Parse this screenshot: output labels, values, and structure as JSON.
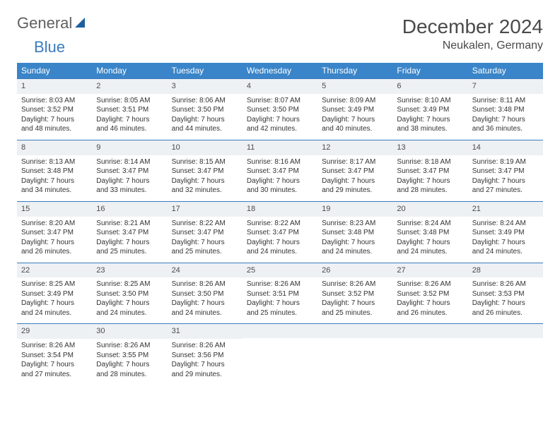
{
  "logo": {
    "text1": "General",
    "text2": "Blue"
  },
  "title": "December 2024",
  "location": "Neukalen, Germany",
  "colors": {
    "header_bg": "#3a85c9",
    "header_text": "#ffffff",
    "border": "#3a7cbf",
    "daynum_bg": "#eef1f3",
    "text": "#333333",
    "title_text": "#4a4a4a"
  },
  "day_names": [
    "Sunday",
    "Monday",
    "Tuesday",
    "Wednesday",
    "Thursday",
    "Friday",
    "Saturday"
  ],
  "weeks": [
    [
      {
        "n": "1",
        "sr": "Sunrise: 8:03 AM",
        "ss": "Sunset: 3:52 PM",
        "d1": "Daylight: 7 hours",
        "d2": "and 48 minutes."
      },
      {
        "n": "2",
        "sr": "Sunrise: 8:05 AM",
        "ss": "Sunset: 3:51 PM",
        "d1": "Daylight: 7 hours",
        "d2": "and 46 minutes."
      },
      {
        "n": "3",
        "sr": "Sunrise: 8:06 AM",
        "ss": "Sunset: 3:50 PM",
        "d1": "Daylight: 7 hours",
        "d2": "and 44 minutes."
      },
      {
        "n": "4",
        "sr": "Sunrise: 8:07 AM",
        "ss": "Sunset: 3:50 PM",
        "d1": "Daylight: 7 hours",
        "d2": "and 42 minutes."
      },
      {
        "n": "5",
        "sr": "Sunrise: 8:09 AM",
        "ss": "Sunset: 3:49 PM",
        "d1": "Daylight: 7 hours",
        "d2": "and 40 minutes."
      },
      {
        "n": "6",
        "sr": "Sunrise: 8:10 AM",
        "ss": "Sunset: 3:49 PM",
        "d1": "Daylight: 7 hours",
        "d2": "and 38 minutes."
      },
      {
        "n": "7",
        "sr": "Sunrise: 8:11 AM",
        "ss": "Sunset: 3:48 PM",
        "d1": "Daylight: 7 hours",
        "d2": "and 36 minutes."
      }
    ],
    [
      {
        "n": "8",
        "sr": "Sunrise: 8:13 AM",
        "ss": "Sunset: 3:48 PM",
        "d1": "Daylight: 7 hours",
        "d2": "and 34 minutes."
      },
      {
        "n": "9",
        "sr": "Sunrise: 8:14 AM",
        "ss": "Sunset: 3:47 PM",
        "d1": "Daylight: 7 hours",
        "d2": "and 33 minutes."
      },
      {
        "n": "10",
        "sr": "Sunrise: 8:15 AM",
        "ss": "Sunset: 3:47 PM",
        "d1": "Daylight: 7 hours",
        "d2": "and 32 minutes."
      },
      {
        "n": "11",
        "sr": "Sunrise: 8:16 AM",
        "ss": "Sunset: 3:47 PM",
        "d1": "Daylight: 7 hours",
        "d2": "and 30 minutes."
      },
      {
        "n": "12",
        "sr": "Sunrise: 8:17 AM",
        "ss": "Sunset: 3:47 PM",
        "d1": "Daylight: 7 hours",
        "d2": "and 29 minutes."
      },
      {
        "n": "13",
        "sr": "Sunrise: 8:18 AM",
        "ss": "Sunset: 3:47 PM",
        "d1": "Daylight: 7 hours",
        "d2": "and 28 minutes."
      },
      {
        "n": "14",
        "sr": "Sunrise: 8:19 AM",
        "ss": "Sunset: 3:47 PM",
        "d1": "Daylight: 7 hours",
        "d2": "and 27 minutes."
      }
    ],
    [
      {
        "n": "15",
        "sr": "Sunrise: 8:20 AM",
        "ss": "Sunset: 3:47 PM",
        "d1": "Daylight: 7 hours",
        "d2": "and 26 minutes."
      },
      {
        "n": "16",
        "sr": "Sunrise: 8:21 AM",
        "ss": "Sunset: 3:47 PM",
        "d1": "Daylight: 7 hours",
        "d2": "and 25 minutes."
      },
      {
        "n": "17",
        "sr": "Sunrise: 8:22 AM",
        "ss": "Sunset: 3:47 PM",
        "d1": "Daylight: 7 hours",
        "d2": "and 25 minutes."
      },
      {
        "n": "18",
        "sr": "Sunrise: 8:22 AM",
        "ss": "Sunset: 3:47 PM",
        "d1": "Daylight: 7 hours",
        "d2": "and 24 minutes."
      },
      {
        "n": "19",
        "sr": "Sunrise: 8:23 AM",
        "ss": "Sunset: 3:48 PM",
        "d1": "Daylight: 7 hours",
        "d2": "and 24 minutes."
      },
      {
        "n": "20",
        "sr": "Sunrise: 8:24 AM",
        "ss": "Sunset: 3:48 PM",
        "d1": "Daylight: 7 hours",
        "d2": "and 24 minutes."
      },
      {
        "n": "21",
        "sr": "Sunrise: 8:24 AM",
        "ss": "Sunset: 3:49 PM",
        "d1": "Daylight: 7 hours",
        "d2": "and 24 minutes."
      }
    ],
    [
      {
        "n": "22",
        "sr": "Sunrise: 8:25 AM",
        "ss": "Sunset: 3:49 PM",
        "d1": "Daylight: 7 hours",
        "d2": "and 24 minutes."
      },
      {
        "n": "23",
        "sr": "Sunrise: 8:25 AM",
        "ss": "Sunset: 3:50 PM",
        "d1": "Daylight: 7 hours",
        "d2": "and 24 minutes."
      },
      {
        "n": "24",
        "sr": "Sunrise: 8:26 AM",
        "ss": "Sunset: 3:50 PM",
        "d1": "Daylight: 7 hours",
        "d2": "and 24 minutes."
      },
      {
        "n": "25",
        "sr": "Sunrise: 8:26 AM",
        "ss": "Sunset: 3:51 PM",
        "d1": "Daylight: 7 hours",
        "d2": "and 25 minutes."
      },
      {
        "n": "26",
        "sr": "Sunrise: 8:26 AM",
        "ss": "Sunset: 3:52 PM",
        "d1": "Daylight: 7 hours",
        "d2": "and 25 minutes."
      },
      {
        "n": "27",
        "sr": "Sunrise: 8:26 AM",
        "ss": "Sunset: 3:52 PM",
        "d1": "Daylight: 7 hours",
        "d2": "and 26 minutes."
      },
      {
        "n": "28",
        "sr": "Sunrise: 8:26 AM",
        "ss": "Sunset: 3:53 PM",
        "d1": "Daylight: 7 hours",
        "d2": "and 26 minutes."
      }
    ],
    [
      {
        "n": "29",
        "sr": "Sunrise: 8:26 AM",
        "ss": "Sunset: 3:54 PM",
        "d1": "Daylight: 7 hours",
        "d2": "and 27 minutes."
      },
      {
        "n": "30",
        "sr": "Sunrise: 8:26 AM",
        "ss": "Sunset: 3:55 PM",
        "d1": "Daylight: 7 hours",
        "d2": "and 28 minutes."
      },
      {
        "n": "31",
        "sr": "Sunrise: 8:26 AM",
        "ss": "Sunset: 3:56 PM",
        "d1": "Daylight: 7 hours",
        "d2": "and 29 minutes."
      },
      null,
      null,
      null,
      null
    ]
  ]
}
